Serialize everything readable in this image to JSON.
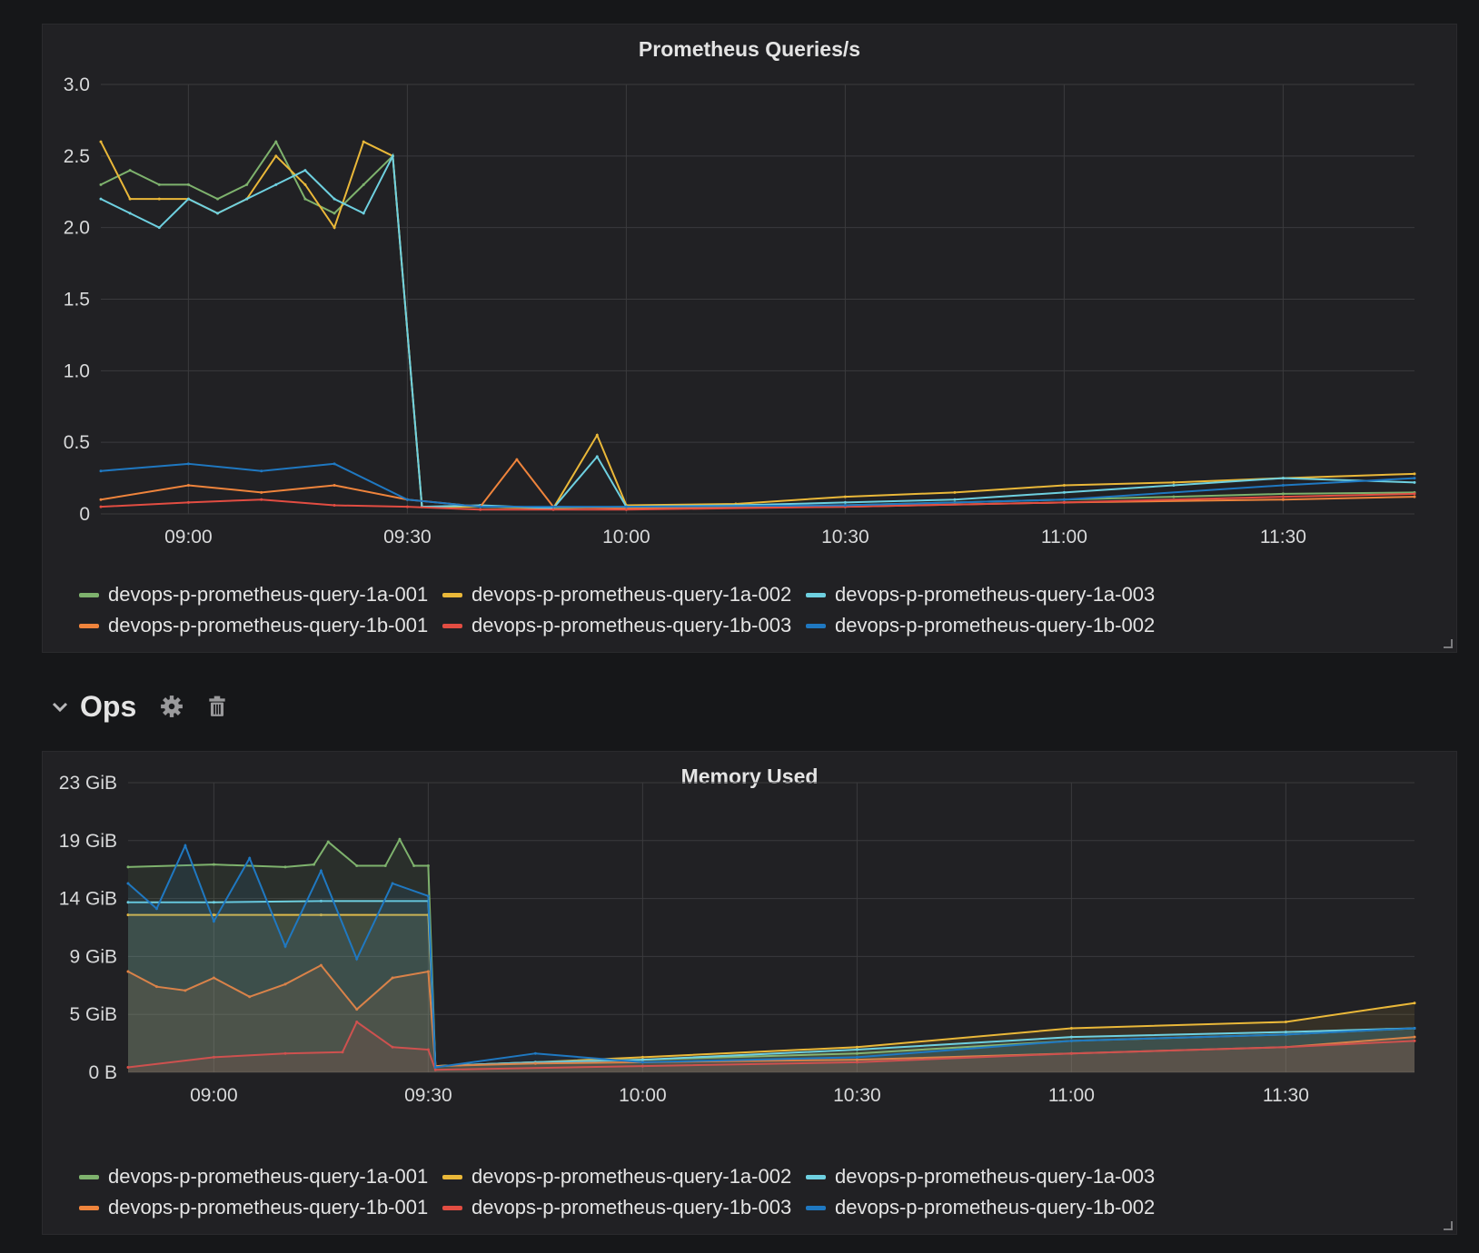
{
  "row": {
    "title": "Ops",
    "settings_icon": "gear-icon",
    "delete_icon": "trash-icon",
    "collapse_icon": "chevron-down-icon"
  },
  "colors": {
    "devops-p-prometheus-query-1a-001": "#7eb26d",
    "devops-p-prometheus-query-1a-002": "#eab839",
    "devops-p-prometheus-query-1a-003": "#6ed0e0",
    "devops-p-prometheus-query-1b-001": "#ef843c",
    "devops-p-prometheus-query-1b-003": "#e24d42",
    "devops-p-prometheus-query-1b-002": "#1f78c1"
  },
  "legend": [
    "devops-p-prometheus-query-1a-001",
    "devops-p-prometheus-query-1a-002",
    "devops-p-prometheus-query-1a-003",
    "devops-p-prometheus-query-1b-001",
    "devops-p-prometheus-query-1b-003",
    "devops-p-prometheus-query-1b-002"
  ],
  "chart_data": [
    {
      "type": "line",
      "title": "Prometheus Queries/s",
      "x_ticks": [
        "09:00",
        "09:30",
        "10:00",
        "10:30",
        "11:00",
        "11:30"
      ],
      "y_ticks": [
        "0",
        "0.5",
        "1.0",
        "1.5",
        "2.0",
        "2.5",
        "3.0"
      ],
      "ylim": [
        0,
        3
      ],
      "x_range": [
        "08:48",
        "11:48"
      ],
      "grid": true,
      "legend_position": "bottom",
      "series": [
        {
          "name": "devops-p-prometheus-query-1a-001",
          "x": [
            "08:48",
            "08:52",
            "08:56",
            "09:00",
            "09:04",
            "09:08",
            "09:12",
            "09:16",
            "09:20",
            "09:24",
            "09:28",
            "09:32",
            "09:40",
            "09:50",
            "10:00",
            "10:15",
            "10:30",
            "10:45",
            "11:00",
            "11:15",
            "11:30",
            "11:48"
          ],
          "values": [
            2.3,
            2.4,
            2.3,
            2.3,
            2.2,
            2.3,
            2.6,
            2.2,
            2.1,
            2.3,
            2.5,
            0.05,
            0.05,
            0.04,
            0.05,
            0.05,
            0.06,
            0.08,
            0.1,
            0.12,
            0.14,
            0.15
          ]
        },
        {
          "name": "devops-p-prometheus-query-1a-002",
          "x": [
            "08:48",
            "08:52",
            "08:56",
            "09:00",
            "09:04",
            "09:08",
            "09:12",
            "09:16",
            "09:20",
            "09:24",
            "09:28",
            "09:32",
            "09:40",
            "09:50",
            "09:56",
            "10:00",
            "10:15",
            "10:30",
            "10:45",
            "11:00",
            "11:15",
            "11:30",
            "11:48"
          ],
          "values": [
            2.6,
            2.2,
            2.2,
            2.2,
            2.1,
            2.2,
            2.5,
            2.3,
            2.0,
            2.6,
            2.5,
            0.05,
            0.05,
            0.04,
            0.55,
            0.06,
            0.07,
            0.12,
            0.15,
            0.2,
            0.22,
            0.25,
            0.28
          ]
        },
        {
          "name": "devops-p-prometheus-query-1a-003",
          "x": [
            "08:48",
            "08:52",
            "08:56",
            "09:00",
            "09:04",
            "09:08",
            "09:12",
            "09:16",
            "09:20",
            "09:24",
            "09:28",
            "09:32",
            "09:40",
            "09:50",
            "09:56",
            "10:00",
            "10:15",
            "10:30",
            "10:45",
            "11:00",
            "11:15",
            "11:30",
            "11:48"
          ],
          "values": [
            2.2,
            2.1,
            2.0,
            2.2,
            2.1,
            2.2,
            2.3,
            2.4,
            2.2,
            2.1,
            2.5,
            0.05,
            0.06,
            0.04,
            0.4,
            0.05,
            0.06,
            0.08,
            0.1,
            0.15,
            0.2,
            0.25,
            0.22
          ]
        },
        {
          "name": "devops-p-prometheus-query-1b-001",
          "x": [
            "08:48",
            "09:00",
            "09:10",
            "09:20",
            "09:30",
            "09:40",
            "09:45",
            "09:50",
            "10:00",
            "10:30",
            "11:00",
            "11:30",
            "11:48"
          ],
          "values": [
            0.1,
            0.2,
            0.15,
            0.2,
            0.1,
            0.05,
            0.38,
            0.05,
            0.04,
            0.05,
            0.08,
            0.1,
            0.12
          ]
        },
        {
          "name": "devops-p-prometheus-query-1b-003",
          "x": [
            "08:48",
            "09:00",
            "09:10",
            "09:20",
            "09:30",
            "09:40",
            "09:50",
            "10:00",
            "10:30",
            "11:00",
            "11:30",
            "11:48"
          ],
          "values": [
            0.05,
            0.08,
            0.1,
            0.06,
            0.05,
            0.03,
            0.03,
            0.03,
            0.05,
            0.08,
            0.12,
            0.14
          ]
        },
        {
          "name": "devops-p-prometheus-query-1b-002",
          "x": [
            "08:48",
            "09:00",
            "09:10",
            "09:20",
            "09:30",
            "09:40",
            "09:50",
            "10:00",
            "10:30",
            "11:00",
            "11:30",
            "11:48"
          ],
          "values": [
            0.3,
            0.35,
            0.3,
            0.35,
            0.1,
            0.05,
            0.05,
            0.05,
            0.06,
            0.1,
            0.2,
            0.25
          ]
        }
      ]
    },
    {
      "type": "area",
      "title": "Memory Used",
      "x_ticks": [
        "09:00",
        "09:30",
        "10:00",
        "10:30",
        "11:00",
        "11:30"
      ],
      "y_ticks": [
        "0 B",
        "5 GiB",
        "9 GiB",
        "14 GiB",
        "19 GiB",
        "23 GiB"
      ],
      "ylim": [
        0,
        23
      ],
      "x_range": [
        "08:48",
        "11:48"
      ],
      "grid": true,
      "legend_position": "bottom",
      "series": [
        {
          "name": "devops-p-prometheus-query-1a-001",
          "x": [
            "08:48",
            "09:00",
            "09:10",
            "09:14",
            "09:16",
            "09:20",
            "09:24",
            "09:26",
            "09:28",
            "09:30",
            "09:31",
            "09:45",
            "10:00",
            "10:30",
            "11:00",
            "11:30",
            "11:48"
          ],
          "values": [
            16.3,
            16.5,
            16.3,
            16.5,
            18.3,
            16.4,
            16.4,
            18.5,
            16.4,
            16.4,
            0.5,
            0.8,
            1.0,
            1.5,
            2.5,
            3.0,
            3.5
          ]
        },
        {
          "name": "devops-p-prometheus-query-1a-002",
          "x": [
            "08:48",
            "09:00",
            "09:15",
            "09:30",
            "09:31",
            "09:45",
            "10:00",
            "10:30",
            "11:00",
            "11:30",
            "11:48"
          ],
          "values": [
            12.5,
            12.5,
            12.5,
            12.5,
            0.5,
            0.8,
            1.2,
            2.0,
            3.5,
            4.0,
            5.5
          ]
        },
        {
          "name": "devops-p-prometheus-query-1a-003",
          "x": [
            "08:48",
            "09:00",
            "09:15",
            "09:30",
            "09:31",
            "09:45",
            "10:00",
            "10:30",
            "11:00",
            "11:30",
            "11:48"
          ],
          "values": [
            13.5,
            13.5,
            13.6,
            13.6,
            0.5,
            0.8,
            1.0,
            1.8,
            2.8,
            3.2,
            3.5
          ]
        },
        {
          "name": "devops-p-prometheus-query-1b-001",
          "x": [
            "08:48",
            "08:52",
            "08:56",
            "09:00",
            "09:05",
            "09:10",
            "09:15",
            "09:20",
            "09:25",
            "09:30",
            "09:31",
            "09:45",
            "10:00",
            "10:30",
            "11:00",
            "11:30",
            "11:48"
          ],
          "values": [
            8.0,
            6.8,
            6.5,
            7.5,
            6.0,
            7.0,
            8.5,
            5.0,
            7.5,
            8.0,
            0.5,
            0.7,
            0.8,
            1.0,
            1.5,
            2.0,
            2.8
          ]
        },
        {
          "name": "devops-p-prometheus-query-1b-003",
          "x": [
            "08:48",
            "09:00",
            "09:10",
            "09:18",
            "09:20",
            "09:25",
            "09:30",
            "09:31",
            "10:00",
            "10:30",
            "11:00",
            "11:30",
            "11:48"
          ],
          "values": [
            0.4,
            1.2,
            1.5,
            1.6,
            4.0,
            2.0,
            1.8,
            0.2,
            0.5,
            0.8,
            1.5,
            2.0,
            2.5
          ]
        },
        {
          "name": "devops-p-prometheus-query-1b-002",
          "x": [
            "08:48",
            "08:52",
            "08:56",
            "09:00",
            "09:05",
            "09:10",
            "09:15",
            "09:20",
            "09:25",
            "09:30",
            "09:31",
            "09:45",
            "10:00",
            "10:30",
            "11:00",
            "11:30",
            "11:48"
          ],
          "values": [
            15.0,
            13.0,
            18.0,
            12.0,
            17.0,
            10.0,
            16.0,
            9.0,
            15.0,
            14.0,
            0.4,
            1.5,
            0.8,
            1.2,
            2.5,
            3.0,
            3.5
          ]
        }
      ]
    }
  ]
}
